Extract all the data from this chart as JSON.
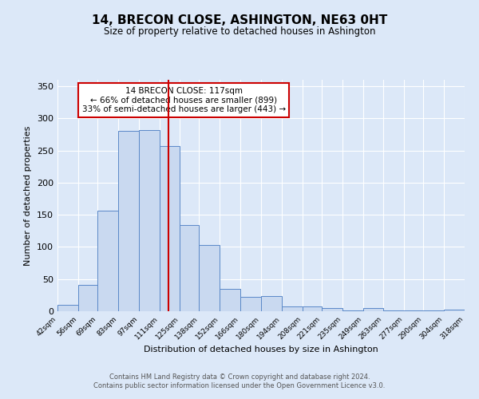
{
  "title": "14, BRECON CLOSE, ASHINGTON, NE63 0HT",
  "subtitle": "Size of property relative to detached houses in Ashington",
  "xlabel": "Distribution of detached houses by size in Ashington",
  "ylabel": "Number of detached properties",
  "bin_edges": [
    42,
    56,
    69,
    83,
    97,
    111,
    125,
    138,
    152,
    166,
    180,
    194,
    208,
    221,
    235,
    249,
    263,
    277,
    290,
    304,
    318
  ],
  "bin_heights": [
    10,
    41,
    157,
    281,
    282,
    257,
    134,
    103,
    35,
    22,
    23,
    7,
    7,
    5,
    1,
    5,
    1,
    1,
    1,
    2
  ],
  "bar_facecolor": "#c9d9f0",
  "bar_edgecolor": "#5a88c8",
  "vline_x": 117,
  "vline_color": "#cc0000",
  "annotation_title": "14 BRECON CLOSE: 117sqm",
  "annotation_line1": "← 66% of detached houses are smaller (899)",
  "annotation_line2": "33% of semi-detached houses are larger (443) →",
  "annotation_box_edgecolor": "#cc0000",
  "ylim": [
    0,
    360
  ],
  "yticks": [
    0,
    50,
    100,
    150,
    200,
    250,
    300,
    350
  ],
  "tick_labels": [
    "42sqm",
    "56sqm",
    "69sqm",
    "83sqm",
    "97sqm",
    "111sqm",
    "125sqm",
    "138sqm",
    "152sqm",
    "166sqm",
    "180sqm",
    "194sqm",
    "208sqm",
    "221sqm",
    "235sqm",
    "249sqm",
    "263sqm",
    "277sqm",
    "290sqm",
    "304sqm",
    "318sqm"
  ],
  "background_color": "#dce8f8",
  "plot_bg_color": "#dce8f8",
  "footer_line1": "Contains HM Land Registry data © Crown copyright and database right 2024.",
  "footer_line2": "Contains public sector information licensed under the Open Government Licence v3.0."
}
